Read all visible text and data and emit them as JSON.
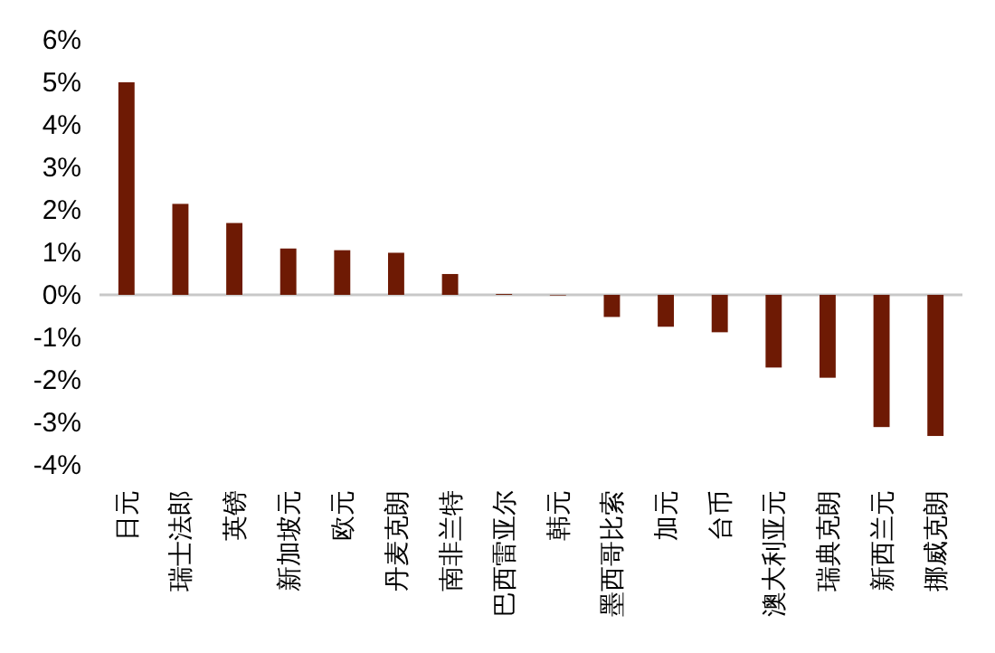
{
  "chart_data": {
    "type": "bar",
    "categories": [
      "日元",
      "瑞士法郎",
      "英镑",
      "新加坡元",
      "欧元",
      "丹麦克朗",
      "南非兰特",
      "巴西雷亚尔",
      "韩元",
      "墨西哥比索",
      "加元",
      "台币",
      "澳大利亚元",
      "瑞典克朗",
      "新西兰元",
      "挪威克朗"
    ],
    "values": [
      5.0,
      2.14,
      1.69,
      1.09,
      1.05,
      0.99,
      0.49,
      0.02,
      0,
      -0.52,
      -0.75,
      -0.88,
      -1.71,
      -1.95,
      -3.11,
      -3.32
    ],
    "color": "#6e1a04",
    "ylim": [
      -4,
      6
    ],
    "yticks": [
      {
        "value": -4,
        "label": "-4%"
      },
      {
        "value": -3,
        "label": "-3%"
      },
      {
        "value": -2,
        "label": "-2%"
      },
      {
        "value": -1,
        "label": "-1%"
      },
      {
        "value": 0,
        "label": "0%"
      },
      {
        "value": 1,
        "label": "1%"
      },
      {
        "value": 2,
        "label": "2%"
      },
      {
        "value": 3,
        "label": "3%"
      },
      {
        "value": 4,
        "label": "4%"
      },
      {
        "value": 5,
        "label": "5%"
      },
      {
        "value": 6,
        "label": "6%"
      }
    ],
    "ref_lines": [
      {
        "axis": "y",
        "value": 0,
        "color": "#c8c8c8"
      }
    ]
  }
}
